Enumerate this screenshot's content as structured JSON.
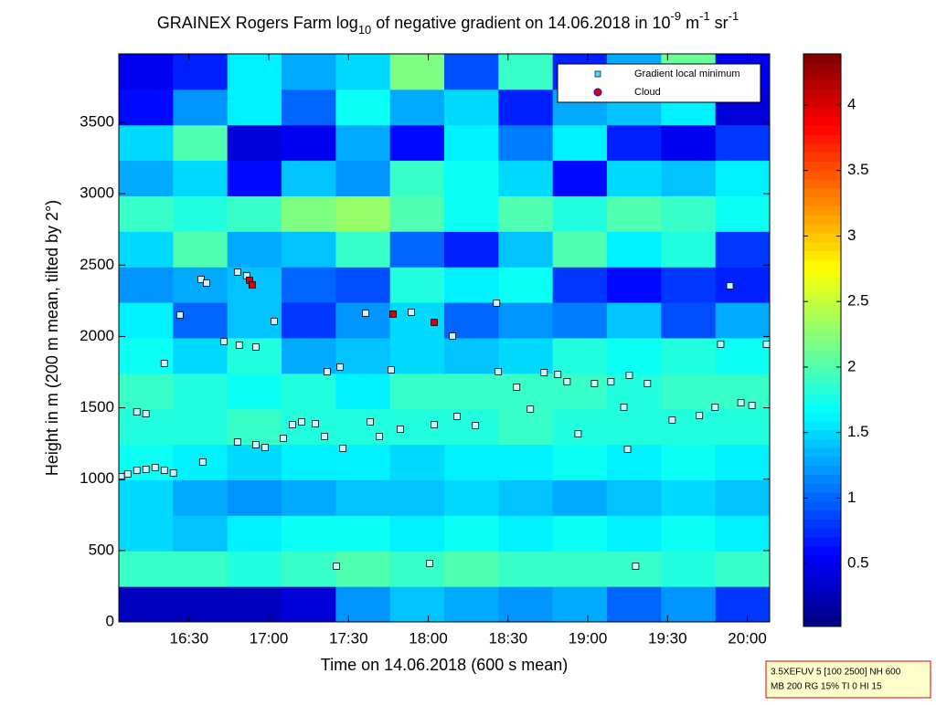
{
  "chart_data": {
    "type": "heatmap",
    "title": [
      "GRAINEX Rogers Farm log",
      "10",
      " of negative gradient on 14.06.2018 in 10",
      "-9",
      " m",
      "-1",
      " sr",
      "-1"
    ],
    "xlabel": "Time on 14.06.2018 (600 s mean)",
    "ylabel": "Height in m (200 m mean, tilted by 2°)",
    "colormap": "jet",
    "xlim": [
      16.06,
      20.14
    ],
    "xticks": [
      {
        "value": 16.5,
        "label": "16:30"
      },
      {
        "value": 17,
        "label": "17:00"
      },
      {
        "value": 17.5,
        "label": "17:30"
      },
      {
        "value": 18,
        "label": "18:00"
      },
      {
        "value": 18.5,
        "label": "18:30"
      },
      {
        "value": 19,
        "label": "19:00"
      },
      {
        "value": 19.5,
        "label": "19:30"
      },
      {
        "value": 20,
        "label": "20:00"
      }
    ],
    "ylim": [
      0,
      3980
    ],
    "yticks": [
      0,
      500,
      1000,
      1500,
      2000,
      2500,
      3000,
      3500
    ],
    "clim": [
      0.02,
      4.39
    ],
    "cticks": [
      0.5,
      1,
      1.5,
      2,
      2.5,
      3,
      3.5,
      4
    ],
    "x": [
      16.23,
      16.57,
      16.91,
      17.25,
      17.59,
      17.93,
      18.27,
      18.61,
      18.95,
      19.29,
      19.63,
      19.97
    ],
    "y": [
      124,
      373,
      622,
      871,
      1120,
      1368,
      1617,
      1866,
      2115,
      2363,
      2612,
      2861,
      3110,
      3358,
      3607,
      3856
    ],
    "z": [
      [
        0.3,
        0.3,
        0.3,
        0.4,
        1.2,
        1.4,
        1.3,
        1.2,
        1.3,
        1.0,
        1.2,
        0.8
      ],
      [
        1.9,
        1.9,
        1.8,
        1.9,
        2.0,
        1.9,
        2.0,
        1.9,
        1.9,
        1.9,
        1.8,
        1.9
      ],
      [
        1.5,
        1.4,
        1.6,
        1.7,
        1.7,
        1.6,
        1.7,
        1.6,
        1.7,
        1.6,
        1.7,
        1.6
      ],
      [
        1.5,
        1.3,
        1.2,
        1.3,
        1.4,
        1.4,
        1.5,
        1.4,
        1.3,
        1.4,
        1.5,
        1.4
      ],
      [
        1.7,
        1.6,
        1.5,
        1.6,
        1.6,
        1.5,
        1.6,
        1.6,
        1.7,
        1.6,
        1.7,
        1.6
      ],
      [
        1.8,
        1.8,
        1.9,
        1.8,
        1.8,
        1.8,
        1.8,
        1.9,
        1.8,
        1.8,
        1.8,
        1.8
      ],
      [
        1.9,
        1.8,
        1.7,
        1.8,
        1.6,
        1.9,
        1.9,
        1.9,
        1.9,
        1.8,
        1.9,
        1.9
      ],
      [
        1.7,
        1.5,
        1.8,
        1.3,
        1.4,
        1.5,
        1.4,
        1.5,
        1.8,
        1.7,
        1.8,
        1.7
      ],
      [
        1.6,
        1.0,
        1.4,
        0.8,
        1.2,
        1.5,
        1.0,
        1.2,
        1.1,
        1.4,
        0.9,
        1.3
      ],
      [
        1.2,
        1.3,
        1.4,
        1.0,
        0.9,
        1.8,
        1.6,
        1.7,
        0.8,
        0.6,
        0.8,
        0.7
      ],
      [
        1.5,
        2.0,
        1.3,
        1.4,
        1.9,
        1.0,
        0.7,
        1.4,
        2.0,
        1.6,
        1.8,
        0.8
      ],
      [
        1.9,
        1.8,
        1.9,
        2.2,
        2.3,
        2.0,
        1.7,
        2.0,
        1.8,
        2.0,
        1.9,
        1.7
      ],
      [
        1.3,
        1.5,
        0.6,
        1.4,
        1.2,
        1.9,
        1.7,
        1.5,
        0.6,
        1.5,
        1.4,
        1.6
      ],
      [
        1.5,
        2.0,
        0.4,
        0.5,
        1.3,
        0.6,
        1.6,
        1.1,
        1.6,
        0.7,
        0.5,
        0.8
      ],
      [
        0.6,
        1.2,
        1.6,
        1.0,
        1.7,
        1.3,
        1.5,
        0.7,
        1.3,
        1.4,
        1.6,
        0.4
      ],
      [
        0.5,
        0.7,
        1.6,
        1.3,
        1.5,
        2.2,
        0.9,
        1.9,
        0.7,
        1.3,
        2.1,
        0.5
      ]
    ],
    "series": [
      {
        "name": "Gradient local minimum",
        "color": "#c8f4ff",
        "x": [
          16.075,
          16.116,
          16.173,
          16.23,
          16.288,
          16.345,
          16.402,
          16.173,
          16.23,
          16.345,
          16.443,
          16.575,
          16.61,
          16.586,
          16.718,
          16.804,
          16.861,
          16.815,
          16.919,
          16.804,
          16.919,
          16.976,
          17.034,
          17.091,
          17.148,
          17.206,
          17.292,
          17.349,
          17.366,
          17.447,
          17.464,
          17.424,
          17.607,
          17.636,
          17.693,
          17.768,
          17.825,
          17.894,
          18.037,
          18.009,
          18.152,
          18.181,
          18.296,
          18.428,
          18.439,
          18.554,
          18.64,
          18.726,
          18.812,
          18.87,
          18.939,
          19.042,
          19.145,
          19.226,
          19.26,
          19.249,
          19.3,
          19.374,
          19.529,
          19.7,
          19.798,
          19.833,
          19.891,
          19.96,
          20.029,
          20.12
        ],
        "y": [
          1018,
          1037,
          1062,
          1069,
          1082,
          1062,
          1043,
          1472,
          1459,
          1811,
          2150,
          2400,
          2374,
          1120,
          1965,
          2451,
          2426,
          1939,
          1926,
          1261,
          1242,
          1222,
          2106,
          1286,
          1382,
          1402,
          1389,
          1299,
          1754,
          1786,
          1216,
          390,
          2163,
          1402,
          1299,
          1766,
          1350,
          2170,
          1382,
          410,
          2003,
          1440,
          1376,
          2234,
          1754,
          1645,
          1491,
          1747,
          1734,
          1683,
          1318,
          1670,
          1683,
          1504,
          1728,
          1210,
          390,
          1670,
          1414,
          1446,
          1504,
          1946,
          2355,
          1536,
          1517,
          1946
        ]
      },
      {
        "name": "Cloud",
        "color": "#dd0000",
        "x": [
          16.879,
          16.896,
          17.779,
          18.037
        ],
        "y": [
          2394,
          2362,
          2157,
          2099
        ]
      }
    ],
    "legend": "upper right",
    "annotations": [
      "3.5XEFUV 5 [100 2500] NH 600",
      "MB 200 RG 15% TI 0 HI 15"
    ]
  }
}
